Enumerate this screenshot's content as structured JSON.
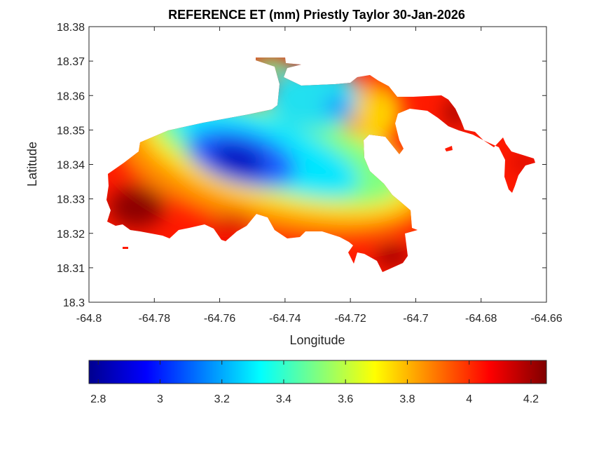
{
  "chart_data": {
    "type": "heatmap",
    "title": "REFERENCE ET (mm) Priestly Taylor 30-Jan-2026",
    "xlabel": "Longitude",
    "ylabel": "Latitude",
    "xlim": [
      -64.8,
      -64.66
    ],
    "ylim": [
      18.3,
      18.38
    ],
    "xticks": [
      "-64.8",
      "-64.78",
      "-64.76",
      "-64.74",
      "-64.72",
      "-64.7",
      "-64.68",
      "-64.66"
    ],
    "yticks": [
      "18.3",
      "18.31",
      "18.32",
      "18.33",
      "18.34",
      "18.35",
      "18.36",
      "18.37",
      "18.38"
    ],
    "colormap": "jet",
    "colorbar": {
      "range": [
        2.77,
        4.25
      ],
      "ticks": [
        "2.8",
        "3",
        "3.2",
        "3.4",
        "3.6",
        "3.8",
        "4",
        "4.2"
      ],
      "placement": "bottom"
    },
    "value_range_shown": [
      2.8,
      4.25
    ],
    "grid": false
  }
}
